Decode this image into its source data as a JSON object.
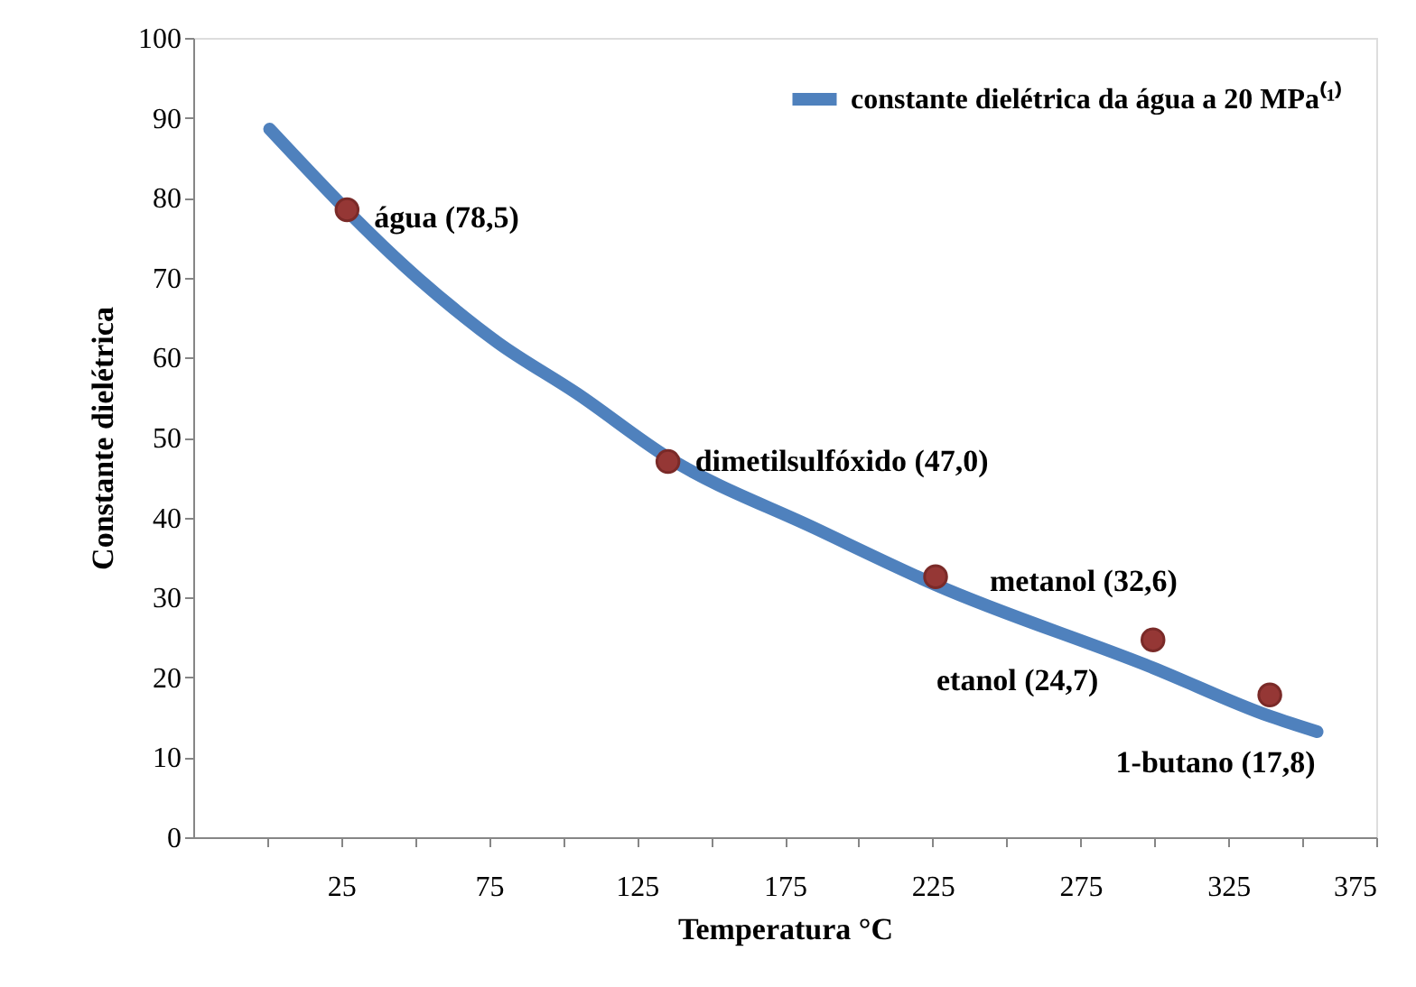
{
  "chart_data": {
    "type": "line",
    "xlabel": "Temperatura °C",
    "ylabel": "Constante dielétrica",
    "xlim": [
      -25,
      375
    ],
    "ylim": [
      0,
      100
    ],
    "xticks": [
      {
        "value": 0,
        "label": null
      },
      25,
      {
        "value": 50,
        "label": null
      },
      75,
      {
        "value": 100,
        "label": null
      },
      125,
      {
        "value": 150,
        "label": null
      },
      175,
      {
        "value": 200,
        "label": null
      },
      225,
      {
        "value": 250,
        "label": null
      },
      275,
      {
        "value": 300,
        "label": null
      },
      325,
      {
        "value": 350,
        "label": null
      },
      375
    ],
    "yticks": [
      0,
      10,
      20,
      30,
      40,
      50,
      60,
      70,
      80,
      90,
      100
    ],
    "grid": false,
    "legend": "top right",
    "series": [
      {
        "name": "constante dielétrica da água a 20 MPa⁽¹⁾",
        "color": "#4f81bd",
        "marker": "none",
        "line_style": "solid",
        "x": [
          0.8,
          51.1,
          77.9,
          104.8,
          135.5,
          185.5,
          225.9,
          299.5,
          339.3,
          355
        ],
        "values": [
          88.6,
          69.9,
          61.9,
          55.5,
          47.5,
          38.6,
          31.6,
          21.2,
          15.1,
          13.2
        ]
      },
      {
        "type": "scatter",
        "color": "#953735",
        "marker": "circle",
        "x": [
          27,
          135.5,
          226,
          299.5,
          339
        ],
        "values": [
          78.5,
          47.0,
          32.6,
          24.7,
          17.8
        ]
      }
    ],
    "annotations": [
      {
        "text": "água (78,5)",
        "x": 27,
        "y": 78.5
      },
      {
        "text": "dimetilsulfóxido (47,0)",
        "x": 135.5,
        "y": 47.0
      },
      {
        "text": "metanol (32,6)",
        "x": 226,
        "y": 32.6
      },
      {
        "text": "etanol (24,7)",
        "x": 299.5,
        "y": 24.7
      },
      {
        "text": "1-butano (17,8)",
        "x": 339,
        "y": 17.8
      }
    ]
  }
}
